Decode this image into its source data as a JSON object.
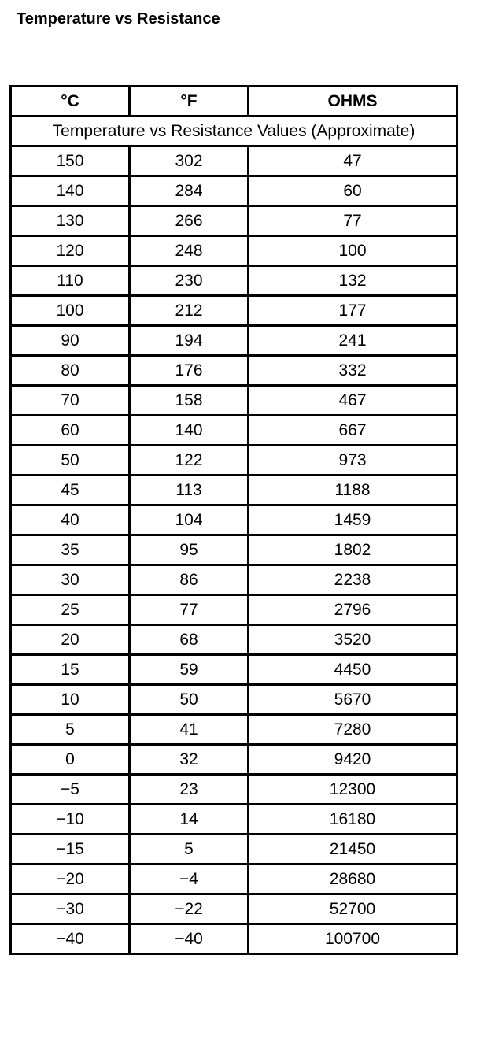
{
  "title": "Temperature vs Resistance",
  "table": {
    "headers": [
      "°C",
      "°F",
      "OHMS"
    ],
    "subtitle": "Temperature vs Resistance Values (Approximate)",
    "rows": [
      [
        "150",
        "302",
        "47"
      ],
      [
        "140",
        "284",
        "60"
      ],
      [
        "130",
        "266",
        "77"
      ],
      [
        "120",
        "248",
        "100"
      ],
      [
        "110",
        "230",
        "132"
      ],
      [
        "100",
        "212",
        "177"
      ],
      [
        "90",
        "194",
        "241"
      ],
      [
        "80",
        "176",
        "332"
      ],
      [
        "70",
        "158",
        "467"
      ],
      [
        "60",
        "140",
        "667"
      ],
      [
        "50",
        "122",
        "973"
      ],
      [
        "45",
        "113",
        "1188"
      ],
      [
        "40",
        "104",
        "1459"
      ],
      [
        "35",
        "95",
        "1802"
      ],
      [
        "30",
        "86",
        "2238"
      ],
      [
        "25",
        "77",
        "2796"
      ],
      [
        "20",
        "68",
        "3520"
      ],
      [
        "15",
        "59",
        "4450"
      ],
      [
        "10",
        "50",
        "5670"
      ],
      [
        "5",
        "41",
        "7280"
      ],
      [
        "0",
        "32",
        "9420"
      ],
      [
        "−5",
        "23",
        "12300"
      ],
      [
        "−10",
        "14",
        "16180"
      ],
      [
        "−15",
        "5",
        "21450"
      ],
      [
        "−20",
        "−4",
        "28680"
      ],
      [
        "−30",
        "−22",
        "52700"
      ],
      [
        "−40",
        "−40",
        "100700"
      ]
    ]
  }
}
